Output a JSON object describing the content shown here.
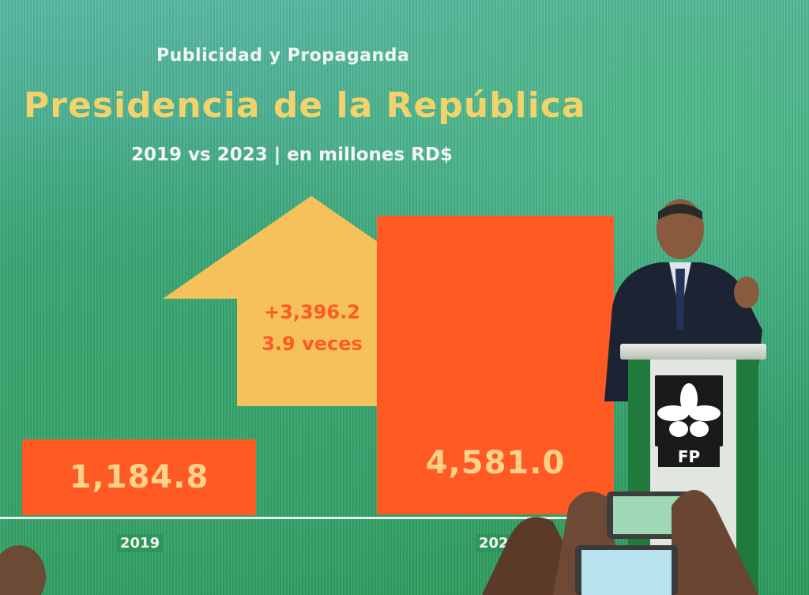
{
  "slide": {
    "subtitle_top": "Publicidad y Propaganda",
    "title": "Presidencia de la República",
    "subtitle": "2019 vs 2023 | en millones RD$",
    "increase_label": "+3,396.2",
    "multiplier_label": "3.9 veces"
  },
  "chart_data": {
    "type": "bar",
    "categories": [
      "2019",
      "2023"
    ],
    "values": [
      1184.8,
      4581.0
    ],
    "value_labels": [
      "1,184.8",
      "4,581.0"
    ],
    "title": "Presidencia de la República",
    "colors": {
      "bar": "#ff5a24",
      "arrow": "#f5c15a",
      "value_text": "#ffd28a"
    }
  },
  "podium": {
    "logo_text": "FP"
  },
  "colors": {
    "background": "#3aa77a",
    "title": "#f2d26b"
  }
}
